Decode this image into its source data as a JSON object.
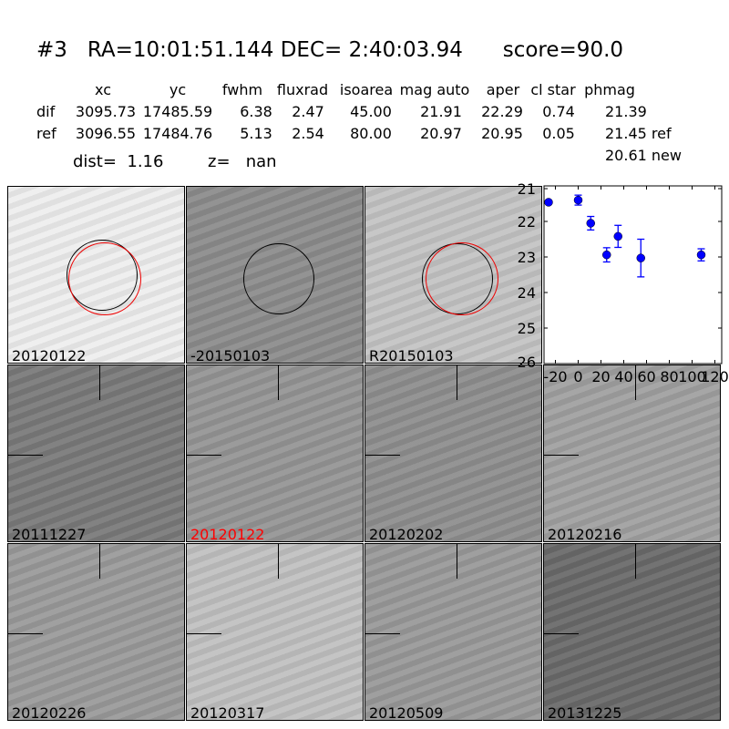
{
  "title": {
    "id": "#3",
    "coords": "RA=10:01:51.144 DEC= 2:40:03.94",
    "score": "score=90.0"
  },
  "table": {
    "headers": [
      "xc",
      "yc",
      "fwhm",
      "fluxrad",
      "isoarea",
      "mag auto",
      "aper",
      "cl star",
      "phmag"
    ],
    "rows": [
      {
        "label": "dif",
        "values": [
          "3095.73",
          "17485.59",
          "6.38",
          "2.47",
          "45.00",
          "21.91",
          "22.29",
          "0.74",
          "21.39"
        ]
      },
      {
        "label": "ref",
        "values": [
          "3096.55",
          "17484.76",
          "5.13",
          "2.54",
          "80.00",
          "20.97",
          "20.95",
          "0.05",
          "21.45 ref"
        ]
      }
    ],
    "extra": "20.61 new"
  },
  "dist": "dist=  1.16",
  "z": "z=   nan",
  "stamps": {
    "row1": [
      "20120122",
      "-20150103",
      "R20150103"
    ],
    "row2": [
      "20111227",
      "20120122",
      "20120202",
      "20120216"
    ],
    "row3": [
      "20120226",
      "20120317",
      "20120509",
      "20131225"
    ],
    "highlight_color": "#ff0000"
  },
  "chart_data": {
    "type": "scatter",
    "x": [
      -26,
      0,
      11,
      25,
      35,
      55,
      108
    ],
    "y": [
      21.46,
      21.4,
      22.05,
      22.94,
      22.42,
      23.03,
      22.94
    ],
    "yerr": [
      0.05,
      0.14,
      0.19,
      0.2,
      0.31,
      0.53,
      0.17
    ],
    "xlim": [
      -30,
      126
    ],
    "ylim": [
      26,
      21
    ],
    "y_inverted": true,
    "xticks": [
      -20,
      0,
      20,
      40,
      60,
      80,
      100,
      120
    ],
    "yticks": [
      21,
      22,
      23,
      24,
      25,
      26
    ],
    "color": "#0000ff",
    "grid": false
  }
}
